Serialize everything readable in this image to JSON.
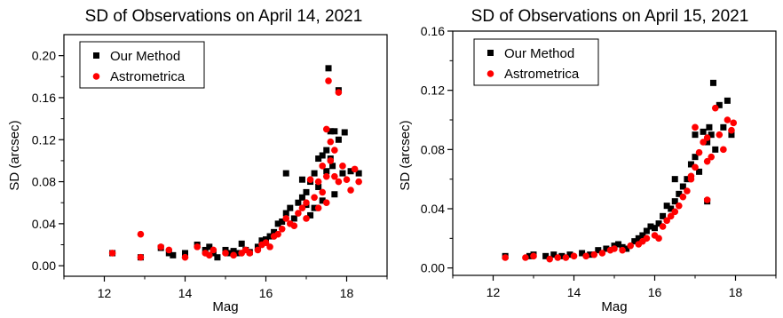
{
  "chart_data": [
    {
      "type": "scatter",
      "title": "SD of Observations on April 14, 2021",
      "xlabel": "Mag",
      "ylabel": "SD (arcsec)",
      "xlim": [
        11,
        19
      ],
      "ylim": [
        -0.01,
        0.22
      ],
      "xticks": [
        12,
        14,
        16,
        18
      ],
      "yticks": [
        0.0,
        0.04,
        0.08,
        0.12,
        0.16,
        0.2
      ],
      "ytick_labels": [
        "0.00",
        "0.04",
        "0.08",
        "0.12",
        "0.16",
        "0.20"
      ],
      "legend_position": "top-left",
      "grid": false,
      "series": [
        {
          "name": "Our Method",
          "marker": "square",
          "color": "#000000",
          "points": [
            [
              12.2,
              0.012
            ],
            [
              12.9,
              0.008
            ],
            [
              13.4,
              0.017
            ],
            [
              13.6,
              0.012
            ],
            [
              13.7,
              0.01
            ],
            [
              14.0,
              0.012
            ],
            [
              14.3,
              0.02
            ],
            [
              14.5,
              0.015
            ],
            [
              14.6,
              0.018
            ],
            [
              14.7,
              0.012
            ],
            [
              14.8,
              0.008
            ],
            [
              15.0,
              0.015
            ],
            [
              15.1,
              0.012
            ],
            [
              15.2,
              0.014
            ],
            [
              15.3,
              0.012
            ],
            [
              15.4,
              0.021
            ],
            [
              15.5,
              0.015
            ],
            [
              15.6,
              0.013
            ],
            [
              15.8,
              0.018
            ],
            [
              15.9,
              0.024
            ],
            [
              16.0,
              0.025
            ],
            [
              16.1,
              0.028
            ],
            [
              16.2,
              0.032
            ],
            [
              16.3,
              0.04
            ],
            [
              16.4,
              0.042
            ],
            [
              16.5,
              0.088
            ],
            [
              16.5,
              0.05
            ],
            [
              16.6,
              0.055
            ],
            [
              16.7,
              0.045
            ],
            [
              16.8,
              0.06
            ],
            [
              16.9,
              0.082
            ],
            [
              17.0,
              0.07
            ],
            [
              17.0,
              0.058
            ],
            [
              17.1,
              0.048
            ],
            [
              17.2,
              0.055
            ],
            [
              17.2,
              0.088
            ],
            [
              17.3,
              0.102
            ],
            [
              17.3,
              0.075
            ],
            [
              17.4,
              0.105
            ],
            [
              17.4,
              0.062
            ],
            [
              17.5,
              0.11
            ],
            [
              17.5,
              0.09
            ],
            [
              17.55,
              0.188
            ],
            [
              17.6,
              0.128
            ],
            [
              17.6,
              0.102
            ],
            [
              17.7,
              0.128
            ],
            [
              17.7,
              0.068
            ],
            [
              17.8,
              0.167
            ],
            [
              17.8,
              0.12
            ],
            [
              17.9,
              0.088
            ],
            [
              17.95,
              0.127
            ],
            [
              18.1,
              0.09
            ],
            [
              18.3,
              0.088
            ],
            [
              17.65,
              0.095
            ],
            [
              16.9,
              0.065
            ],
            [
              17.1,
              0.08
            ]
          ]
        },
        {
          "name": "Astrometrica",
          "marker": "circle",
          "color": "#ff0000",
          "points": [
            [
              12.2,
              0.012
            ],
            [
              12.9,
              0.03
            ],
            [
              12.9,
              0.008
            ],
            [
              13.4,
              0.018
            ],
            [
              13.6,
              0.015
            ],
            [
              14.0,
              0.008
            ],
            [
              14.3,
              0.018
            ],
            [
              14.5,
              0.012
            ],
            [
              14.6,
              0.01
            ],
            [
              14.7,
              0.015
            ],
            [
              15.0,
              0.012
            ],
            [
              15.2,
              0.01
            ],
            [
              15.4,
              0.012
            ],
            [
              15.5,
              0.015
            ],
            [
              15.6,
              0.012
            ],
            [
              15.8,
              0.015
            ],
            [
              15.9,
              0.02
            ],
            [
              16.0,
              0.022
            ],
            [
              16.1,
              0.018
            ],
            [
              16.2,
              0.028
            ],
            [
              16.3,
              0.03
            ],
            [
              16.4,
              0.035
            ],
            [
              16.5,
              0.045
            ],
            [
              16.6,
              0.04
            ],
            [
              16.7,
              0.038
            ],
            [
              16.8,
              0.05
            ],
            [
              16.9,
              0.055
            ],
            [
              17.0,
              0.06
            ],
            [
              17.0,
              0.045
            ],
            [
              17.1,
              0.082
            ],
            [
              17.2,
              0.065
            ],
            [
              17.3,
              0.08
            ],
            [
              17.3,
              0.055
            ],
            [
              17.4,
              0.095
            ],
            [
              17.4,
              0.07
            ],
            [
              17.5,
              0.13
            ],
            [
              17.5,
              0.085
            ],
            [
              17.5,
              0.06
            ],
            [
              17.55,
              0.176
            ],
            [
              17.6,
              0.118
            ],
            [
              17.6,
              0.1
            ],
            [
              17.7,
              0.11
            ],
            [
              17.7,
              0.085
            ],
            [
              17.8,
              0.165
            ],
            [
              17.8,
              0.08
            ],
            [
              17.9,
              0.095
            ],
            [
              18.0,
              0.082
            ],
            [
              18.1,
              0.072
            ],
            [
              18.3,
              0.08
            ],
            [
              18.2,
              0.092
            ]
          ]
        }
      ]
    },
    {
      "type": "scatter",
      "title": "SD of Observations on April 15, 2021",
      "xlabel": "Mag",
      "ylabel": "SD (arcsec)",
      "xlim": [
        11,
        19
      ],
      "ylim": [
        -0.005,
        0.16
      ],
      "xticks": [
        12,
        14,
        16,
        18
      ],
      "yticks": [
        0.0,
        0.04,
        0.08,
        0.12,
        0.16
      ],
      "ytick_labels": [
        "0.00",
        "0.04",
        "0.08",
        "0.12",
        "0.16"
      ],
      "legend_position": "top-left",
      "grid": false,
      "series": [
        {
          "name": "Our Method",
          "marker": "square",
          "color": "#000000",
          "points": [
            [
              12.3,
              0.008
            ],
            [
              12.9,
              0.008
            ],
            [
              13.0,
              0.009
            ],
            [
              13.3,
              0.008
            ],
            [
              13.5,
              0.009
            ],
            [
              13.7,
              0.008
            ],
            [
              13.9,
              0.009
            ],
            [
              14.2,
              0.01
            ],
            [
              14.4,
              0.009
            ],
            [
              14.6,
              0.012
            ],
            [
              14.8,
              0.013
            ],
            [
              15.0,
              0.015
            ],
            [
              15.1,
              0.016
            ],
            [
              15.2,
              0.014
            ],
            [
              15.3,
              0.013
            ],
            [
              15.5,
              0.018
            ],
            [
              15.6,
              0.02
            ],
            [
              15.7,
              0.022
            ],
            [
              15.8,
              0.025
            ],
            [
              15.9,
              0.028
            ],
            [
              16.0,
              0.027
            ],
            [
              16.1,
              0.03
            ],
            [
              16.2,
              0.035
            ],
            [
              16.3,
              0.042
            ],
            [
              16.4,
              0.04
            ],
            [
              16.5,
              0.06
            ],
            [
              16.5,
              0.045
            ],
            [
              16.6,
              0.05
            ],
            [
              16.7,
              0.055
            ],
            [
              16.8,
              0.06
            ],
            [
              16.9,
              0.07
            ],
            [
              17.0,
              0.09
            ],
            [
              17.0,
              0.075
            ],
            [
              17.1,
              0.065
            ],
            [
              17.2,
              0.092
            ],
            [
              17.3,
              0.085
            ],
            [
              17.35,
              0.095
            ],
            [
              17.4,
              0.09
            ],
            [
              17.45,
              0.125
            ],
            [
              17.5,
              0.08
            ],
            [
              17.6,
              0.11
            ],
            [
              17.7,
              0.095
            ],
            [
              17.8,
              0.113
            ],
            [
              17.9,
              0.09
            ],
            [
              17.3,
              0.045
            ]
          ]
        },
        {
          "name": "Astrometrica",
          "marker": "circle",
          "color": "#ff0000",
          "points": [
            [
              12.3,
              0.007
            ],
            [
              12.8,
              0.007
            ],
            [
              13.0,
              0.008
            ],
            [
              13.4,
              0.006
            ],
            [
              13.6,
              0.007
            ],
            [
              13.8,
              0.007
            ],
            [
              14.0,
              0.008
            ],
            [
              14.3,
              0.008
            ],
            [
              14.5,
              0.009
            ],
            [
              14.7,
              0.01
            ],
            [
              14.9,
              0.012
            ],
            [
              15.0,
              0.013
            ],
            [
              15.2,
              0.012
            ],
            [
              15.4,
              0.015
            ],
            [
              15.6,
              0.016
            ],
            [
              15.7,
              0.018
            ],
            [
              15.8,
              0.02
            ],
            [
              16.0,
              0.022
            ],
            [
              16.1,
              0.02
            ],
            [
              16.2,
              0.028
            ],
            [
              16.3,
              0.032
            ],
            [
              16.4,
              0.035
            ],
            [
              16.5,
              0.038
            ],
            [
              16.6,
              0.042
            ],
            [
              16.7,
              0.048
            ],
            [
              16.8,
              0.052
            ],
            [
              16.9,
              0.06
            ],
            [
              17.0,
              0.095
            ],
            [
              17.0,
              0.068
            ],
            [
              17.1,
              0.078
            ],
            [
              17.2,
              0.085
            ],
            [
              17.3,
              0.088
            ],
            [
              17.3,
              0.072
            ],
            [
              17.4,
              0.075
            ],
            [
              17.5,
              0.108
            ],
            [
              17.6,
              0.09
            ],
            [
              17.7,
              0.08
            ],
            [
              17.8,
              0.1
            ],
            [
              17.9,
              0.093
            ],
            [
              17.95,
              0.098
            ],
            [
              17.3,
              0.046
            ],
            [
              16.9,
              0.062
            ]
          ]
        }
      ]
    }
  ]
}
